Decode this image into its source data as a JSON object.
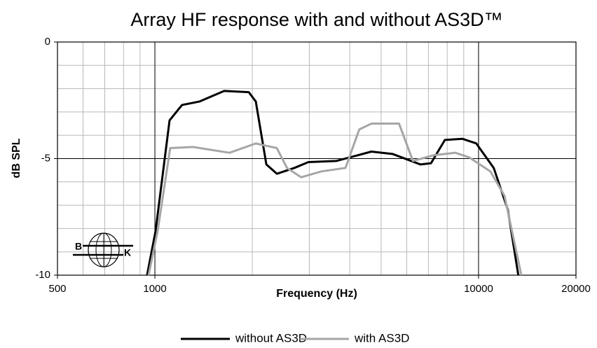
{
  "chart_data": {
    "type": "line",
    "title": "Array HF response with and without AS3D™",
    "xlabel": "Frequency (Hz)",
    "ylabel": "dB SPL",
    "log_x": true,
    "grid": true,
    "legend": "bottom",
    "xlim": [
      500,
      20000
    ],
    "xticks": [
      500,
      1000,
      10000,
      20000
    ],
    "ylim": [
      -10,
      0
    ],
    "yticks": [
      0,
      -5,
      -10
    ],
    "logo": {
      "left": "B",
      "right": "K"
    },
    "series": [
      {
        "name": "without AS3D",
        "color": "#000000",
        "x": [
          946,
          1005,
          1110,
          1213,
          1375,
          1637,
          1950,
          2050,
          2210,
          2382,
          2698,
          2980,
          3640,
          4665,
          5420,
          6610,
          7130,
          7870,
          8910,
          9840,
          11140,
          12320,
          13270
        ],
        "values": [
          -10,
          -8.1,
          -3.36,
          -2.7,
          -2.55,
          -2.1,
          -2.15,
          -2.55,
          -5.25,
          -5.65,
          -5.4,
          -5.15,
          -5.1,
          -4.7,
          -4.8,
          -5.25,
          -5.2,
          -4.2,
          -4.15,
          -4.35,
          -5.4,
          -7.2,
          -10
        ]
      },
      {
        "name": "with AS3D",
        "color": "#a6a6a6",
        "x": [
          956,
          1020,
          1115,
          1310,
          1700,
          2050,
          2382,
          2560,
          2830,
          3270,
          3880,
          4280,
          4665,
          5680,
          6270,
          7300,
          8480,
          9360,
          10880,
          12030,
          13560
        ],
        "values": [
          -10,
          -8.1,
          -4.55,
          -4.5,
          -4.75,
          -4.35,
          -4.55,
          -5.4,
          -5.8,
          -5.55,
          -5.4,
          -3.75,
          -3.5,
          -3.5,
          -5.1,
          -4.85,
          -4.75,
          -4.95,
          -5.55,
          -6.6,
          -10
        ]
      }
    ]
  }
}
